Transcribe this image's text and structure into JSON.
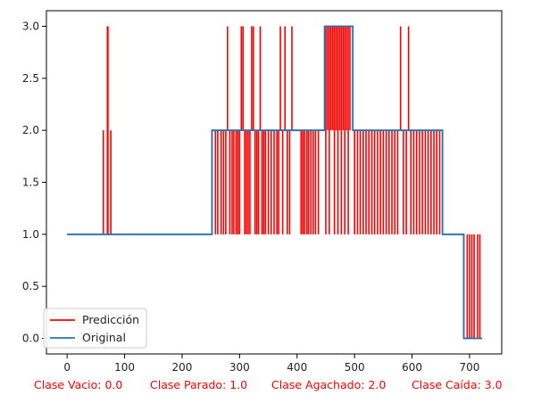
{
  "chart_data": {
    "type": "line",
    "title": "",
    "xlabel": "",
    "ylabel": "",
    "xlim": [
      -36,
      756
    ],
    "ylim": [
      -0.15,
      3.15
    ],
    "xticks": [
      0,
      100,
      200,
      300,
      400,
      500,
      600,
      700
    ],
    "yticks": [
      0.0,
      0.5,
      1.0,
      1.5,
      2.0,
      2.5,
      3.0
    ],
    "xtick_labels": [
      "0",
      "100",
      "200",
      "300",
      "400",
      "500",
      "600",
      "700"
    ],
    "ytick_labels": [
      "0.0",
      "0.5",
      "1.0",
      "1.5",
      "2.0",
      "2.5",
      "3.0"
    ],
    "series": [
      {
        "name": "Original",
        "color": "#1f77b4",
        "step_segments": [
          {
            "x_start": 0,
            "x_end": 252,
            "value": 1.0
          },
          {
            "x_start": 252,
            "x_end": 448,
            "value": 2.0
          },
          {
            "x_start": 448,
            "x_end": 497,
            "value": 3.0
          },
          {
            "x_start": 497,
            "x_end": 653,
            "value": 2.0
          },
          {
            "x_start": 653,
            "x_end": 690,
            "value": 1.0
          },
          {
            "x_start": 690,
            "x_end": 722,
            "value": 0.0
          }
        ]
      },
      {
        "name": "Predicción",
        "color": "#ff0000",
        "base_segments": [
          {
            "x_start": 0,
            "x_end": 252,
            "value": 1.0
          },
          {
            "x_start": 252,
            "x_end": 448,
            "value": 2.0
          },
          {
            "x_start": 448,
            "x_end": 497,
            "value": 3.0
          },
          {
            "x_start": 497,
            "x_end": 653,
            "value": 2.0
          },
          {
            "x_start": 653,
            "x_end": 690,
            "value": 1.0
          },
          {
            "x_start": 690,
            "x_end": 722,
            "value": 0.0
          }
        ],
        "spikes": [
          {
            "x": 63,
            "value": 2.0
          },
          {
            "x": 70,
            "value": 3.0
          },
          {
            "x": 71,
            "value": 3.0
          },
          {
            "x": 76,
            "value": 2.0
          },
          {
            "x": 258,
            "value": 1.0
          },
          {
            "x": 262,
            "value": 1.0
          },
          {
            "x": 268,
            "value": 1.0
          },
          {
            "x": 272,
            "value": 1.0
          },
          {
            "x": 276,
            "value": 1.0
          },
          {
            "x": 279,
            "value": 3.0
          },
          {
            "x": 283,
            "value": 1.0
          },
          {
            "x": 287,
            "value": 1.0
          },
          {
            "x": 290,
            "value": 1.0
          },
          {
            "x": 294,
            "value": 1.0
          },
          {
            "x": 297,
            "value": 1.0
          },
          {
            "x": 300,
            "value": 1.0
          },
          {
            "x": 303,
            "value": 3.0
          },
          {
            "x": 306,
            "value": 3.0
          },
          {
            "x": 309,
            "value": 1.0
          },
          {
            "x": 312,
            "value": 1.0
          },
          {
            "x": 315,
            "value": 1.0
          },
          {
            "x": 318,
            "value": 1.0
          },
          {
            "x": 321,
            "value": 3.0
          },
          {
            "x": 324,
            "value": 3.0
          },
          {
            "x": 327,
            "value": 1.0
          },
          {
            "x": 330,
            "value": 1.0
          },
          {
            "x": 333,
            "value": 1.0
          },
          {
            "x": 336,
            "value": 3.0
          },
          {
            "x": 339,
            "value": 1.0
          },
          {
            "x": 342,
            "value": 1.0
          },
          {
            "x": 345,
            "value": 1.0
          },
          {
            "x": 350,
            "value": 1.0
          },
          {
            "x": 355,
            "value": 1.0
          },
          {
            "x": 360,
            "value": 1.0
          },
          {
            "x": 365,
            "value": 1.0
          },
          {
            "x": 368,
            "value": 1.0
          },
          {
            "x": 371,
            "value": 3.0
          },
          {
            "x": 375,
            "value": 1.0
          },
          {
            "x": 379,
            "value": 3.0
          },
          {
            "x": 383,
            "value": 1.0
          },
          {
            "x": 387,
            "value": 1.0
          },
          {
            "x": 391,
            "value": 3.0
          },
          {
            "x": 407,
            "value": 1.0
          },
          {
            "x": 410,
            "value": 1.0
          },
          {
            "x": 413,
            "value": 1.0
          },
          {
            "x": 417,
            "value": 1.0
          },
          {
            "x": 420,
            "value": 1.0
          },
          {
            "x": 424,
            "value": 1.0
          },
          {
            "x": 428,
            "value": 1.0
          },
          {
            "x": 432,
            "value": 1.0
          },
          {
            "x": 437,
            "value": 1.0
          },
          {
            "x": 450,
            "value": 1.0
          },
          {
            "x": 453,
            "value": 2.0
          },
          {
            "x": 456,
            "value": 1.0
          },
          {
            "x": 459,
            "value": 2.0
          },
          {
            "x": 462,
            "value": 2.0
          },
          {
            "x": 465,
            "value": 1.0
          },
          {
            "x": 468,
            "value": 2.0
          },
          {
            "x": 471,
            "value": 1.0
          },
          {
            "x": 474,
            "value": 2.0
          },
          {
            "x": 477,
            "value": 1.0
          },
          {
            "x": 480,
            "value": 2.0
          },
          {
            "x": 483,
            "value": 1.0
          },
          {
            "x": 486,
            "value": 2.0
          },
          {
            "x": 489,
            "value": 1.0
          },
          {
            "x": 492,
            "value": 2.0
          },
          {
            "x": 500,
            "value": 1.0
          },
          {
            "x": 505,
            "value": 1.0
          },
          {
            "x": 510,
            "value": 1.0
          },
          {
            "x": 515,
            "value": 1.0
          },
          {
            "x": 520,
            "value": 1.0
          },
          {
            "x": 525,
            "value": 1.0
          },
          {
            "x": 530,
            "value": 1.0
          },
          {
            "x": 535,
            "value": 1.0
          },
          {
            "x": 540,
            "value": 1.0
          },
          {
            "x": 545,
            "value": 1.0
          },
          {
            "x": 550,
            "value": 1.0
          },
          {
            "x": 555,
            "value": 1.0
          },
          {
            "x": 560,
            "value": 1.0
          },
          {
            "x": 565,
            "value": 1.0
          },
          {
            "x": 570,
            "value": 1.0
          },
          {
            "x": 575,
            "value": 1.0
          },
          {
            "x": 580,
            "value": 3.0
          },
          {
            "x": 585,
            "value": 1.0
          },
          {
            "x": 590,
            "value": 1.0
          },
          {
            "x": 594,
            "value": 3.0
          },
          {
            "x": 598,
            "value": 1.0
          },
          {
            "x": 603,
            "value": 1.0
          },
          {
            "x": 608,
            "value": 1.0
          },
          {
            "x": 613,
            "value": 1.0
          },
          {
            "x": 618,
            "value": 1.0
          },
          {
            "x": 623,
            "value": 1.0
          },
          {
            "x": 628,
            "value": 1.0
          },
          {
            "x": 633,
            "value": 1.0
          },
          {
            "x": 638,
            "value": 1.0
          },
          {
            "x": 643,
            "value": 1.0
          },
          {
            "x": 648,
            "value": 1.0
          },
          {
            "x": 696,
            "value": 1.0
          },
          {
            "x": 700,
            "value": 1.0
          },
          {
            "x": 704,
            "value": 1.0
          },
          {
            "x": 708,
            "value": 1.0
          },
          {
            "x": 714,
            "value": 1.0
          },
          {
            "x": 718,
            "value": 1.0
          }
        ]
      }
    ],
    "legend": {
      "position": "lower-left",
      "entries": [
        {
          "label": "Predicción",
          "color": "#ff0000"
        },
        {
          "label": "Original",
          "color": "#1f77b4"
        }
      ]
    },
    "class_labels": [
      {
        "text": "Clase Vacio: 0.0",
        "color": "#ff0000"
      },
      {
        "text": "Clase Parado: 1.0",
        "color": "#ff0000"
      },
      {
        "text": "Clase Agachado: 2.0",
        "color": "#ff0000"
      },
      {
        "text": "Clase Caída: 3.0",
        "color": "#ff0000"
      }
    ]
  }
}
